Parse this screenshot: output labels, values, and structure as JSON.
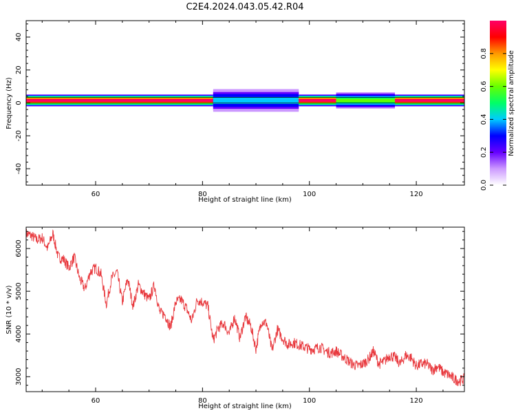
{
  "title": "C2E4.2024.043.05.42.R04",
  "chart_data": [
    {
      "type": "heatmap",
      "xlabel": "Height of straight line (km)",
      "ylabel": "Frequency (Hz)",
      "xlim": [
        47,
        129
      ],
      "ylim": [
        -50,
        50
      ],
      "xticks": [
        60,
        80,
        100,
        120
      ],
      "yticks": [
        -40,
        -20,
        0,
        20,
        40
      ],
      "colorbar": {
        "label": "Normalized spectral amplitude",
        "range": [
          0.0,
          1.0
        ],
        "ticks": [
          0.0,
          0.2,
          0.4,
          0.6,
          0.8
        ],
        "colormap": [
          "#ffffff",
          "#cc99ff",
          "#6600ff",
          "#0000ff",
          "#00ccff",
          "#00ff66",
          "#66ff00",
          "#ffff00",
          "#ff9900",
          "#ff0000",
          "#ff0066"
        ]
      },
      "band": {
        "center_hz": 1.5,
        "segments": [
          {
            "x": [
              47,
              82
            ],
            "peak": 1.0,
            "halfwidth_hz": 3
          },
          {
            "x": [
              82,
              98
            ],
            "peak": 0.4,
            "halfwidth_hz": 6
          },
          {
            "x": [
              98,
              105
            ],
            "peak": 1.0,
            "halfwidth_hz": 3
          },
          {
            "x": [
              105,
              116
            ],
            "peak": 0.6,
            "halfwidth_hz": 4
          },
          {
            "x": [
              116,
              129
            ],
            "peak": 1.0,
            "halfwidth_hz": 3
          }
        ]
      }
    },
    {
      "type": "line",
      "xlabel": "Height of straight line (km)",
      "ylabel": "SNR (10 * v/v)",
      "xlim": [
        47,
        129
      ],
      "ylim": [
        2650,
        6500
      ],
      "xticks": [
        60,
        80,
        100,
        120
      ],
      "yticks": [
        3000,
        4000,
        5000,
        6000
      ],
      "color": "#e8383d",
      "series": [
        {
          "x": [
            47,
            48,
            49,
            50,
            51,
            52,
            53,
            54,
            55,
            56,
            57,
            58,
            59,
            60,
            61,
            62,
            63,
            64,
            65,
            66,
            67,
            68,
            69,
            70,
            71,
            72,
            73,
            74,
            75,
            76,
            77,
            78,
            79,
            80,
            81,
            82,
            83,
            84,
            85,
            86,
            87,
            88,
            89,
            90,
            91,
            92,
            93,
            94,
            95,
            96,
            97,
            98,
            99,
            100,
            101,
            102,
            103,
            104,
            105,
            106,
            107,
            108,
            109,
            110,
            111,
            112,
            113,
            114,
            115,
            116,
            117,
            118,
            119,
            120,
            121,
            122,
            123,
            124,
            125,
            126,
            127,
            128,
            129
          ],
          "y": [
            6350,
            6300,
            6200,
            6250,
            6000,
            6350,
            5800,
            5750,
            5550,
            5800,
            5300,
            5050,
            5450,
            5550,
            5400,
            4700,
            5300,
            5450,
            4750,
            5300,
            4650,
            5150,
            4950,
            4800,
            5150,
            4500,
            4450,
            4150,
            4750,
            4800,
            4600,
            4300,
            4800,
            4750,
            4650,
            3850,
            4150,
            4250,
            4000,
            4400,
            3900,
            4400,
            4200,
            3650,
            4300,
            4250,
            3600,
            4100,
            3900,
            3750,
            3800,
            3750,
            3700,
            3650,
            3650,
            3700,
            3600,
            3550,
            3600,
            3500,
            3400,
            3300,
            3250,
            3300,
            3400,
            3600,
            3300,
            3350,
            3500,
            3450,
            3300,
            3500,
            3450,
            3250,
            3300,
            3300,
            3150,
            3250,
            3100,
            3050,
            2950,
            2900,
            2950
          ]
        }
      ]
    }
  ]
}
